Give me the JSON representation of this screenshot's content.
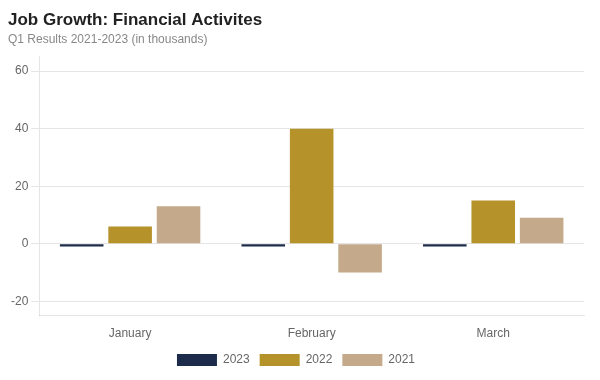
{
  "chart_data": {
    "type": "bar",
    "title": "Job Growth: Financial Activites",
    "subtitle": "Q1 Results 2021-2023 (in thousands)",
    "categories": [
      "January",
      "February",
      "March"
    ],
    "series": [
      {
        "name": "2023",
        "color": "#1c2b4a",
        "values": [
          -1,
          -1,
          -1
        ]
      },
      {
        "name": "2022",
        "color": "#b5922a",
        "values": [
          6,
          40,
          15
        ]
      },
      {
        "name": "2021",
        "color": "#c4a98a",
        "values": [
          13,
          -10,
          9
        ]
      }
    ],
    "ylim": [
      -25,
      65
    ],
    "yticks": [
      -20,
      0,
      20,
      40,
      60
    ],
    "grid": true,
    "legend": "bottom"
  }
}
